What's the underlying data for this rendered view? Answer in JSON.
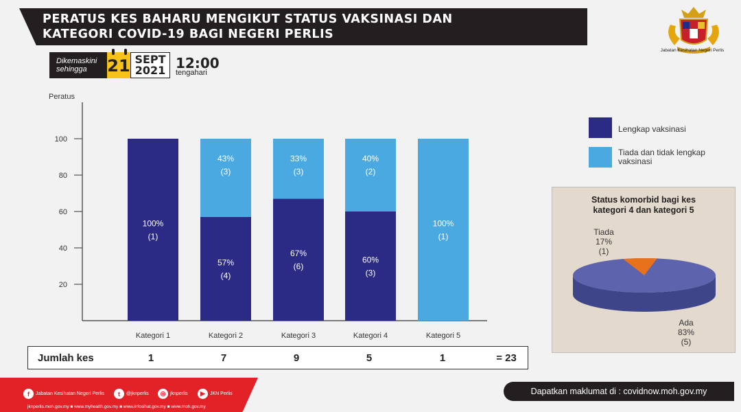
{
  "header": {
    "title": "PERATUS KES BAHARU MENGIKUT STATUS VAKSINASI  DAN\nKATEGORI COVID-19 BAGI NEGERI PERLIS",
    "agency": "Jabatan Kesihatan Negeri Perlis"
  },
  "update": {
    "label": "Dikemaskini\nsehingga",
    "day": "21",
    "month": "SEPT",
    "year": "2021",
    "time": "12:00",
    "time_note": "tengahari"
  },
  "colors": {
    "complete": "#2b2a85",
    "incomplete": "#4ba9e2",
    "pie_ada": "#5d63ad",
    "pie_tiada": "#e8721c"
  },
  "chart_data": [
    {
      "type": "bar",
      "ylabel": "Peratus",
      "ylim": [
        0,
        100
      ],
      "yticks": [
        20,
        40,
        60,
        80,
        100
      ],
      "categories": [
        "Kategori 1",
        "Kategori 2",
        "Kategori 3",
        "Kategori 4",
        "Kategori 5"
      ],
      "stacked": true,
      "series": [
        {
          "name": "Lengkap vaksinasi",
          "values": [
            100,
            57,
            67,
            60,
            0
          ],
          "counts": [
            1,
            4,
            6,
            3,
            0
          ],
          "labels": [
            "100%",
            "57%",
            "67%",
            "60%",
            ""
          ],
          "count_labels": [
            "(1)",
            "(4)",
            "(6)",
            "(3)",
            ""
          ]
        },
        {
          "name": "Tiada dan tidak lengkap vaksinasi",
          "values": [
            0,
            43,
            33,
            40,
            100
          ],
          "counts": [
            0,
            3,
            3,
            2,
            1
          ],
          "labels": [
            "",
            "43%",
            "33%",
            "40%",
            "100%"
          ],
          "count_labels": [
            "",
            "(3)",
            "(3)",
            "(2)",
            "(1)"
          ]
        }
      ],
      "legend": "right",
      "grid": false
    },
    {
      "type": "pie",
      "title": "Status komorbid bagi kes\nkategori 4 dan kategori 5",
      "slices": [
        {
          "name": "Ada",
          "percent": 83,
          "percent_label": "83%",
          "count_label": "(5)"
        },
        {
          "name": "Tiada",
          "percent": 17,
          "percent_label": "17%",
          "count_label": "(1)"
        }
      ]
    }
  ],
  "totals": {
    "label": "Jumlah kes",
    "values": [
      "1",
      "7",
      "9",
      "5",
      "1"
    ],
    "sum": "= 23"
  },
  "footer": {
    "social": [
      {
        "icon": "f",
        "label": "Jabatan Kesihatan Negeri Perlis"
      },
      {
        "icon": "t",
        "label": "@jknperlis"
      },
      {
        "icon": "i",
        "label": "jknperlis"
      },
      {
        "icon": "y",
        "label": "JKN Perlis"
      }
    ],
    "websites": "jknperlis.moh.gov.my ■ www.myhealth.gov.my ■ www.infosihat.gov.my ■ www.moh.gov.my",
    "info": "Dapatkan maklumat di : covidnow.moh.gov.my"
  }
}
